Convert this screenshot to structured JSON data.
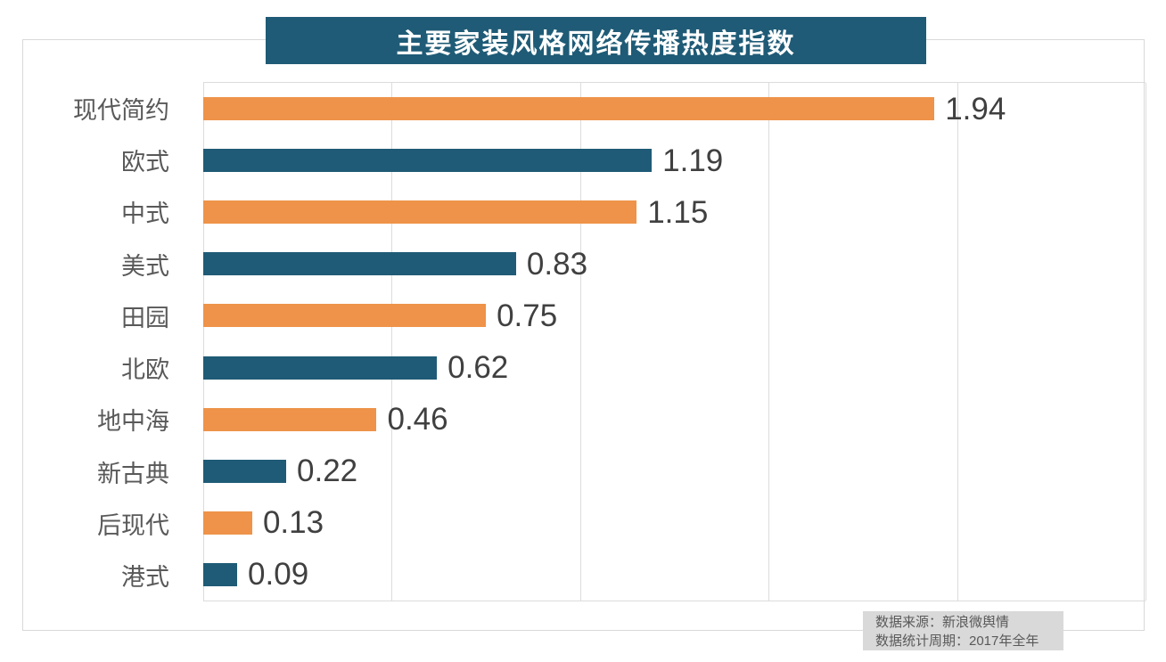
{
  "title": "主要家装风格网络传播热度指数",
  "colors": {
    "title_bg": "#1f5b76",
    "title_text": "#ffffff",
    "bar_orange": "#ee9349",
    "bar_blue": "#1f5b76",
    "grid": "#dcdcdc",
    "frame_border": "#d9d9d9",
    "category_text": "#595959",
    "value_text": "#404040",
    "note_bg": "#d9d9d9",
    "note_text": "#595959"
  },
  "source_note": {
    "line1": "数据来源：新浪微舆情",
    "line2": "数据统计周期：2017年全年"
  },
  "chart_data": {
    "type": "bar",
    "orientation": "horizontal",
    "title": "主要家装风格网络传播热度指数",
    "categories": [
      "现代简约",
      "欧式",
      "中式",
      "美式",
      "田园",
      "北欧",
      "地中海",
      "新古典",
      "后现代",
      "港式"
    ],
    "values": [
      1.94,
      1.19,
      1.15,
      0.83,
      0.75,
      0.62,
      0.46,
      0.22,
      0.13,
      0.09
    ],
    "value_labels": [
      "1.94",
      "1.19",
      "1.15",
      "0.83",
      "0.75",
      "0.62",
      "0.46",
      "0.22",
      "0.13",
      "0.09"
    ],
    "xlabel": "",
    "ylabel": "",
    "xlim": [
      0,
      2.5
    ],
    "gridline_interval": 0.5,
    "grid": true,
    "legend": false,
    "bar_colors_alternate": [
      "#ee9349",
      "#1f5b76"
    ],
    "data_labels": true,
    "annotations": [
      "数据来源：新浪微舆情",
      "数据统计周期：2017年全年"
    ]
  }
}
